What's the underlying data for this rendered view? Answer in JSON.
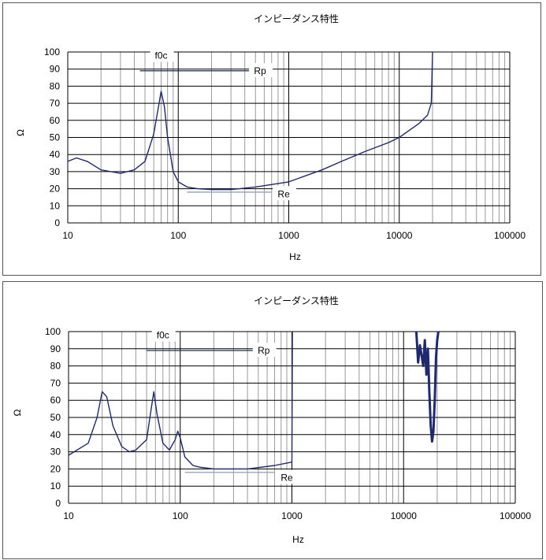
{
  "chart_data": [
    {
      "type": "line",
      "title": "インピーダンス特性",
      "xlabel": "Hz",
      "ylabel": "Ω",
      "xscale": "log",
      "xlim": [
        10,
        100000
      ],
      "ylim": [
        0,
        100
      ],
      "x_ticks": [
        "10",
        "100",
        "1000",
        "10000",
        "100000"
      ],
      "y_ticks": [
        "0",
        "10",
        "20",
        "30",
        "40",
        "50",
        "60",
        "70",
        "80",
        "90",
        "100"
      ],
      "grid": true,
      "line_color": "#1f2a6e",
      "annotations": [
        {
          "text": "f0c",
          "x": 70,
          "y": 97
        },
        {
          "text": "Rp",
          "x": 550,
          "y": 88,
          "line_x": [
            45,
            500
          ],
          "line_y": 89
        },
        {
          "text": "Re",
          "x": 900,
          "y": 16,
          "line_x": [
            120,
            700
          ],
          "line_y": 18
        }
      ],
      "series": [
        {
          "values": [
            [
              10,
              36
            ],
            [
              12,
              38
            ],
            [
              15,
              36
            ],
            [
              20,
              31
            ],
            [
              30,
              29
            ],
            [
              40,
              31
            ],
            [
              50,
              36
            ],
            [
              60,
              52
            ],
            [
              67,
              70
            ],
            [
              70,
              77
            ],
            [
              75,
              68
            ],
            [
              80,
              50
            ],
            [
              90,
              30
            ],
            [
              100,
              24
            ],
            [
              120,
              21
            ],
            [
              150,
              20
            ],
            [
              200,
              19.5
            ],
            [
              300,
              19.5
            ],
            [
              500,
              21
            ],
            [
              1000,
              24
            ],
            [
              2000,
              31
            ],
            [
              3000,
              36
            ],
            [
              5000,
              42
            ],
            [
              8000,
              47
            ],
            [
              10000,
              50
            ],
            [
              15000,
              58
            ],
            [
              18000,
              63
            ],
            [
              19500,
              70
            ],
            [
              20000,
              100
            ]
          ]
        }
      ]
    },
    {
      "type": "line",
      "title": "インピーダンス特性",
      "xlabel": "Hz",
      "ylabel": "Ω",
      "xscale": "log",
      "xlim": [
        10,
        100000
      ],
      "ylim": [
        0,
        100
      ],
      "x_ticks": [
        "10",
        "100",
        "1000",
        "10000",
        "100000"
      ],
      "y_ticks": [
        "0",
        "10",
        "20",
        "30",
        "40",
        "50",
        "60",
        "70",
        "80",
        "90",
        "100"
      ],
      "grid": true,
      "line_color": "#1f2a6e",
      "annotations": [
        {
          "text": "f0c",
          "x": 70,
          "y": 97
        },
        {
          "text": "Rp",
          "x": 560,
          "y": 88,
          "line_x": [
            50,
            520
          ],
          "line_y": 89
        },
        {
          "text": "Re",
          "x": 900,
          "y": 14,
          "line_x": [
            110,
            700
          ],
          "line_y": 18
        }
      ],
      "series": [
        {
          "values": [
            [
              10,
              28
            ],
            [
              15,
              35
            ],
            [
              18,
              50
            ],
            [
              20,
              65
            ],
            [
              22,
              62
            ],
            [
              25,
              45
            ],
            [
              30,
              33
            ],
            [
              35,
              30
            ],
            [
              40,
              31
            ],
            [
              50,
              37
            ],
            [
              55,
              55
            ],
            [
              58,
              65
            ],
            [
              62,
              52
            ],
            [
              70,
              35
            ],
            [
              80,
              31
            ],
            [
              90,
              37
            ],
            [
              95,
              42
            ],
            [
              100,
              38
            ],
            [
              110,
              27
            ],
            [
              130,
              22
            ],
            [
              150,
              21
            ],
            [
              200,
              20
            ],
            [
              400,
              20
            ],
            [
              700,
              22
            ],
            [
              1000,
              24
            ],
            [
              1010,
              100
            ]
          ]
        },
        {
          "values": [
            [
              13000,
              100
            ],
            [
              13500,
              82
            ],
            [
              14000,
              92
            ],
            [
              15000,
              80
            ],
            [
              15500,
              95
            ],
            [
              16000,
              75
            ],
            [
              16500,
              90
            ],
            [
              17000,
              65
            ],
            [
              17500,
              45
            ],
            [
              18000,
              36
            ],
            [
              18500,
              42
            ],
            [
              19000,
              60
            ],
            [
              19500,
              85
            ],
            [
              20000,
              95
            ],
            [
              20500,
              100
            ]
          ]
        }
      ]
    }
  ]
}
